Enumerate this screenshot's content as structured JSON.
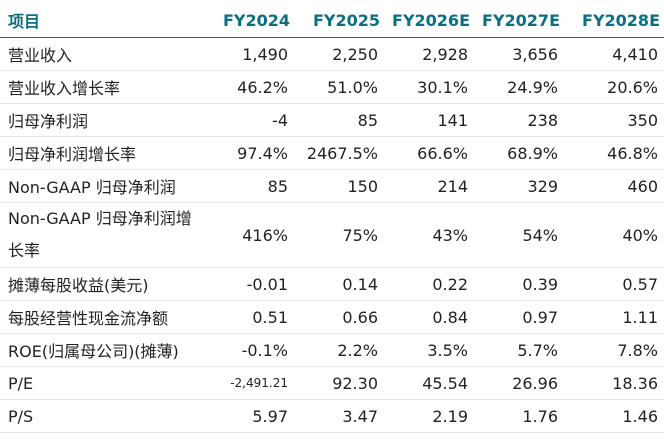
{
  "header": [
    "项目",
    "FY2024",
    "FY2025",
    "FY2026E",
    "FY2027E",
    "FY2028E"
  ],
  "rows": [
    {
      "label": "营业收入",
      "values": [
        "1,490",
        "2,250",
        "2,928",
        "3,656",
        "4,410"
      ]
    },
    {
      "label": "营业收入增长率",
      "values": [
        "46.2%",
        "51.0%",
        "30.1%",
        "24.9%",
        "20.6%"
      ]
    },
    {
      "label": "归母净利润",
      "values": [
        "-4",
        "85",
        "141",
        "238",
        "350"
      ]
    },
    {
      "label": "归母净利润增长率",
      "values": [
        "97.4%",
        "2467.5%",
        "66.6%",
        "68.9%",
        "46.8%"
      ]
    },
    {
      "label": "Non-GAAP 归母净利润",
      "values": [
        "85",
        "150",
        "214",
        "329",
        "460"
      ]
    },
    {
      "label": "Non-GAAP 归母净利润增长率",
      "values": [
        "416%",
        "75%",
        "43%",
        "54%",
        "40%"
      ]
    },
    {
      "label": "摊薄每股收益(美元)",
      "values": [
        "-0.01",
        "0.14",
        "0.22",
        "0.39",
        "0.57"
      ]
    },
    {
      "label": "每股经营性现金流净额",
      "values": [
        "0.51",
        "0.66",
        "0.84",
        "0.97",
        "1.11"
      ]
    },
    {
      "label": "ROE(归属母公司)(摊薄)",
      "values": [
        "-0.1%",
        "2.2%",
        "3.5%",
        "5.7%",
        "7.8%"
      ]
    },
    {
      "label": "P/E",
      "values": [
        "-2,491.21",
        "92.30",
        "45.54",
        "26.96",
        "18.36"
      ]
    },
    {
      "label": "P/S",
      "values": [
        "5.97",
        "3.47",
        "2.19",
        "1.76",
        "1.46"
      ]
    }
  ]
}
